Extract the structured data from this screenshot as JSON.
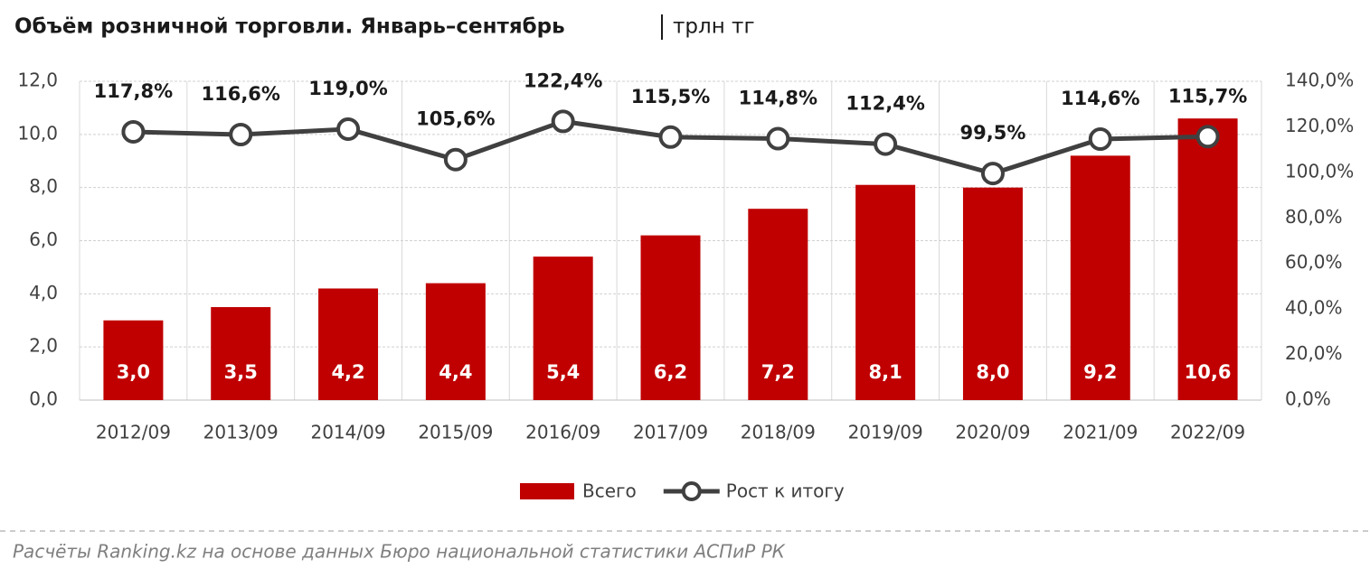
{
  "chart_data": {
    "type": "bar_line",
    "title": "Объём розничной торговли. Январь–сентябрь",
    "unit": "трлн тг",
    "source": "Расчёты Ranking.kz на основе данных Бюро национальной статистики АСПиР РК",
    "categories": [
      "2012/09",
      "2013/09",
      "2014/09",
      "2015/09",
      "2016/09",
      "2017/09",
      "2018/09",
      "2019/09",
      "2020/09",
      "2021/09",
      "2022/09"
    ],
    "series": [
      {
        "name": "Всего",
        "type": "bar",
        "color": "#c00000",
        "values": [
          3.0,
          3.5,
          4.2,
          4.4,
          5.4,
          6.2,
          7.2,
          8.1,
          8.0,
          9.2,
          10.6
        ],
        "value_labels": [
          "3,0",
          "3,5",
          "4,2",
          "4,4",
          "5,4",
          "6,2",
          "7,2",
          "8,1",
          "8,0",
          "9,2",
          "10,6"
        ]
      },
      {
        "name": "Рост к итогу",
        "type": "line",
        "axis": "y2",
        "color": "#404040",
        "values": [
          117.8,
          116.6,
          119.0,
          105.6,
          122.4,
          115.5,
          114.8,
          112.4,
          99.5,
          114.6,
          115.7
        ],
        "value_labels": [
          "117,8%",
          "116,6%",
          "119,0%",
          "105,6%",
          "122,4%",
          "115,5%",
          "114,8%",
          "112,4%",
          "99,5%",
          "114,6%",
          "115,7%"
        ]
      }
    ],
    "ylim": [
      0,
      12
    ],
    "yticks": [
      {
        "value": 0,
        "label": "0,0"
      },
      {
        "value": 2,
        "label": "2,0"
      },
      {
        "value": 4,
        "label": "4,0"
      },
      {
        "value": 6,
        "label": "6,0"
      },
      {
        "value": 8,
        "label": "8,0"
      },
      {
        "value": 10,
        "label": "10,0"
      },
      {
        "value": 12,
        "label": "12,0"
      }
    ],
    "y2lim": [
      0,
      140
    ],
    "y2ticks": [
      {
        "value": 0,
        "label": "0,0%"
      },
      {
        "value": 20,
        "label": "20,0%"
      },
      {
        "value": 40,
        "label": "40,0%"
      },
      {
        "value": 60,
        "label": "60,0%"
      },
      {
        "value": 80,
        "label": "80,0%"
      },
      {
        "value": 100,
        "label": "100,0%"
      },
      {
        "value": 120,
        "label": "120,0%"
      },
      {
        "value": 140,
        "label": "140,0%"
      }
    ],
    "grid": true
  }
}
